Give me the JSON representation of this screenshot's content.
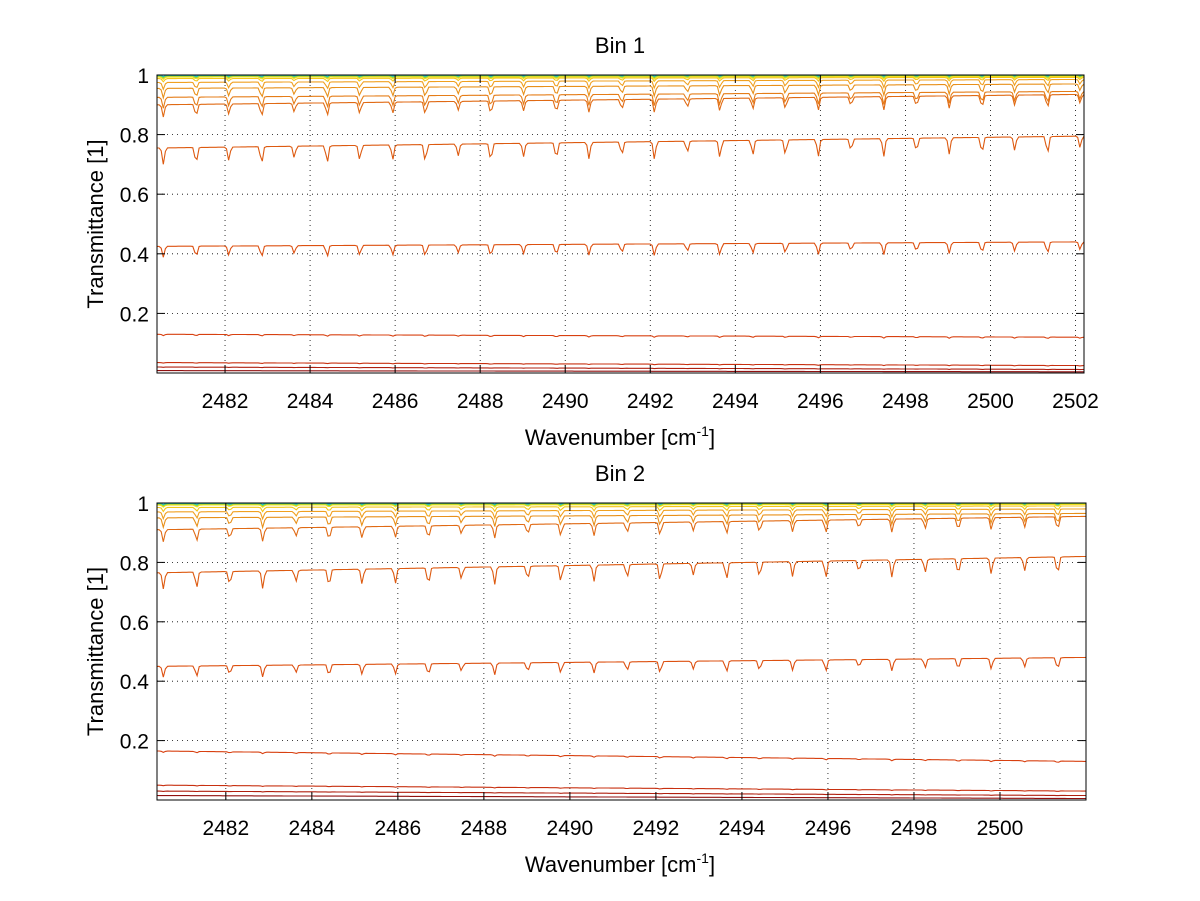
{
  "chart_data": [
    {
      "type": "line",
      "title": "Bin 1",
      "xlabel": "Wavenumber [cm",
      "xlabel_sup": "-1",
      "xlabel_end": "]",
      "ylabel": "Transmittance [1]",
      "xlim": [
        2480.4,
        2502.2
      ],
      "ylim": [
        0,
        1
      ],
      "xticks": [
        2482,
        2484,
        2486,
        2488,
        2490,
        2492,
        2494,
        2496,
        2498,
        2500,
        2502
      ],
      "xtick_labels": [
        "2482",
        "2484",
        "2486",
        "2488",
        "2490",
        "2492",
        "2494",
        "2496",
        "2498",
        "2500",
        "2502"
      ],
      "yticks": [
        0.2,
        0.4,
        0.6,
        0.8,
        1
      ],
      "ytick_labels": [
        "0.2",
        "0.4",
        "0.6",
        "0.8",
        "1"
      ],
      "grid": true,
      "series": [
        {
          "color": "#1f9fd0",
          "start": 0.998,
          "end": 0.999,
          "depth": 0.003
        },
        {
          "color": "#2ec8a8",
          "start": 0.997,
          "end": 0.998,
          "depth": 0.004
        },
        {
          "color": "#8fd43c",
          "start": 0.995,
          "end": 0.997,
          "depth": 0.006
        },
        {
          "color": "#f0e020",
          "start": 0.993,
          "end": 0.995,
          "depth": 0.008
        },
        {
          "color": "#f5c518",
          "start": 0.988,
          "end": 0.992,
          "depth": 0.012
        },
        {
          "color": "#f0a020",
          "start": 0.975,
          "end": 0.985,
          "depth": 0.025
        },
        {
          "color": "#e8901a",
          "start": 0.955,
          "end": 0.97,
          "depth": 0.035
        },
        {
          "color": "#e57d18",
          "start": 0.925,
          "end": 0.945,
          "depth": 0.04
        },
        {
          "color": "#e06a14",
          "start": 0.9,
          "end": 0.935,
          "depth": 0.045
        },
        {
          "color": "#dd5a10",
          "start": 0.755,
          "end": 0.795,
          "depth": 0.06
        },
        {
          "color": "#dd5010",
          "start": 0.425,
          "end": 0.44,
          "depth": 0.04
        },
        {
          "color": "#d84010",
          "start": 0.13,
          "end": 0.12,
          "depth": 0.005
        },
        {
          "color": "#c83010",
          "start": 0.035,
          "end": 0.025,
          "depth": 0.002
        },
        {
          "color": "#b02010",
          "start": 0.02,
          "end": 0.012,
          "depth": 0.001
        },
        {
          "color": "#901010",
          "start": 0.008,
          "end": 0.004,
          "depth": 0.0
        }
      ]
    },
    {
      "type": "line",
      "title": "Bin 2",
      "xlabel": "Wavenumber [cm",
      "xlabel_sup": "-1",
      "xlabel_end": "]",
      "ylabel": "Transmittance [1]",
      "xlim": [
        2480.4,
        2502.0
      ],
      "ylim": [
        0,
        1
      ],
      "xticks": [
        2482,
        2484,
        2486,
        2488,
        2490,
        2492,
        2494,
        2496,
        2498,
        2500
      ],
      "xtick_labels": [
        "2482",
        "2484",
        "2486",
        "2488",
        "2490",
        "2492",
        "2494",
        "2496",
        "2498",
        "2500"
      ],
      "yticks": [
        0.2,
        0.4,
        0.6,
        0.8,
        1
      ],
      "ytick_labels": [
        "0.2",
        "0.4",
        "0.6",
        "0.8",
        "1"
      ],
      "grid": true,
      "series": [
        {
          "color": "#1f9fd0",
          "start": 0.998,
          "end": 0.999,
          "depth": 0.003
        },
        {
          "color": "#2ec8a8",
          "start": 0.997,
          "end": 0.998,
          "depth": 0.004
        },
        {
          "color": "#8fd43c",
          "start": 0.995,
          "end": 0.997,
          "depth": 0.006
        },
        {
          "color": "#f0e020",
          "start": 0.993,
          "end": 0.995,
          "depth": 0.008
        },
        {
          "color": "#f5c518",
          "start": 0.985,
          "end": 0.99,
          "depth": 0.015
        },
        {
          "color": "#f0a020",
          "start": 0.97,
          "end": 0.98,
          "depth": 0.025
        },
        {
          "color": "#e8901a",
          "start": 0.95,
          "end": 0.965,
          "depth": 0.035
        },
        {
          "color": "#e06a14",
          "start": 0.91,
          "end": 0.955,
          "depth": 0.045
        },
        {
          "color": "#dd5a10",
          "start": 0.765,
          "end": 0.82,
          "depth": 0.06
        },
        {
          "color": "#dd5010",
          "start": 0.45,
          "end": 0.48,
          "depth": 0.04
        },
        {
          "color": "#d84010",
          "start": 0.165,
          "end": 0.13,
          "depth": 0.005
        },
        {
          "color": "#c83010",
          "start": 0.05,
          "end": 0.03,
          "depth": 0.002
        },
        {
          "color": "#b02010",
          "start": 0.03,
          "end": 0.015,
          "depth": 0.001
        },
        {
          "color": "#901010",
          "start": 0.015,
          "end": 0.005,
          "depth": 0.0
        }
      ]
    }
  ]
}
